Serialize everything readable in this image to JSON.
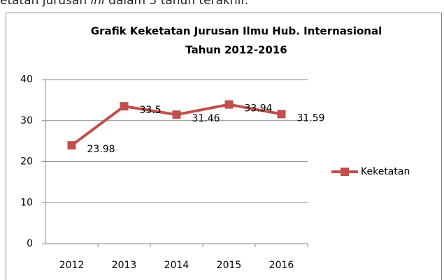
{
  "caption": [
    "etatan jurusan ",
    "ini",
    " dalam 5 tahun terakhir."
  ],
  "chart_data": {
    "type": "line",
    "title": [
      "Grafik Keketatan Jurusan Ilmu Hub. Internasional",
      "Tahun 2012-2016"
    ],
    "categories": [
      "2012",
      "2013",
      "2014",
      "2015",
      "2016"
    ],
    "series": [
      {
        "name": "Keketatan",
        "color": "#c0504d",
        "values": [
          23.98,
          33.5,
          31.46,
          33.94,
          31.59
        ]
      }
    ],
    "ylim": [
      0,
      40
    ],
    "yticks": [
      0,
      10,
      20,
      30,
      40
    ],
    "grid": true,
    "legend": "right"
  }
}
